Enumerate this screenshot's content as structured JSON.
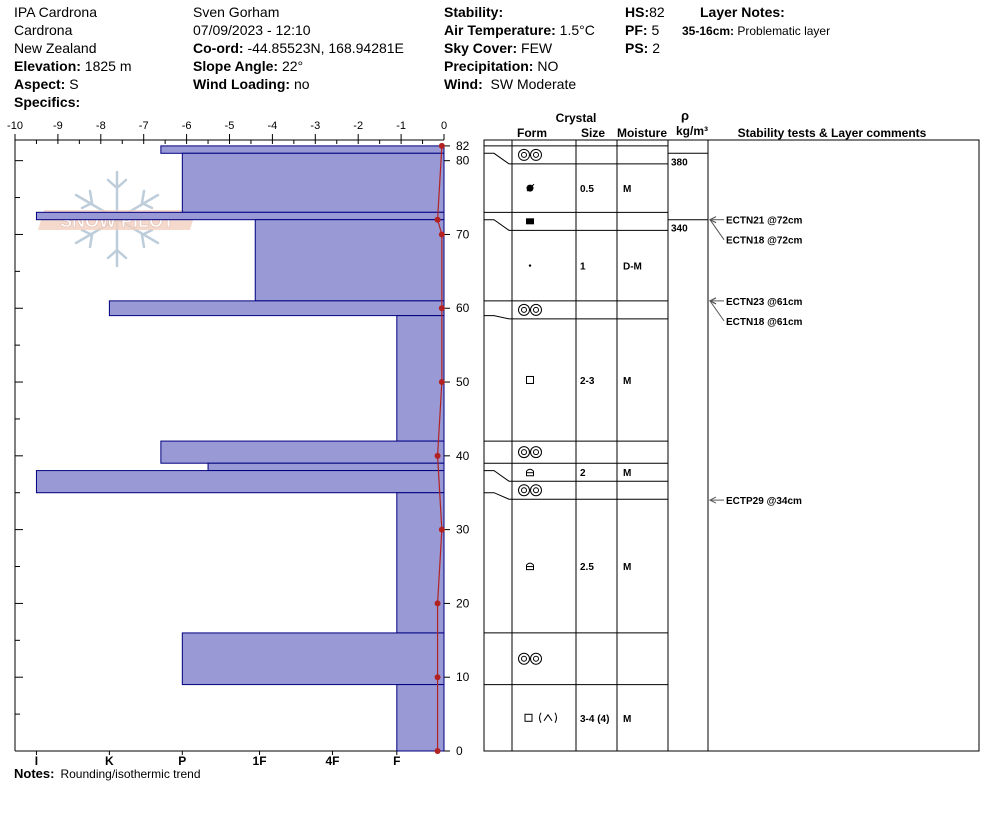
{
  "header": {
    "location": "IPA Cardrona",
    "area": "Cardrona",
    "country": "New Zealand",
    "elevation_label": "Elevation:",
    "elevation_value": "1825 m",
    "aspect_label": "Aspect:",
    "aspect_value": "S",
    "specifics_label": "Specifics:",
    "observer": "Sven Gorham",
    "datetime": "07/09/2023 - 12:10",
    "coord_label": "Co-ord:",
    "coord_value": "-44.85523N, 168.94281E",
    "slope_label": "Slope Angle:",
    "slope_value": "22°",
    "wind_loading_label": "Wind Loading:",
    "wind_loading_value": "no",
    "stability_label": "Stability:",
    "air_temp_label": "Air Temperature:",
    "air_temp_value": "1.5°C",
    "sky_label": "Sky Cover:",
    "sky_value": "FEW",
    "precip_label": "Precipitation:",
    "precip_value": "NO",
    "wind_label": "Wind:",
    "wind_value": "SW Moderate",
    "hs_label": "HS:",
    "hs_value": "82",
    "pf_label": "PF:",
    "pf_value": "5",
    "ps_label": "PS:",
    "ps_value": "2",
    "layer_notes_label": "Layer Notes:",
    "layer_note_range": "35-16cm:",
    "layer_note_text": "Problematic layer"
  },
  "columns": {
    "crystal": "Crystal",
    "form": "Form",
    "size": "Size",
    "moisture": "Moisture",
    "rho": "ρ",
    "density_unit": "kg/m³",
    "stability": "Stability tests & Layer comments"
  },
  "notes": {
    "label": "Notes:",
    "text": "Rounding/isothermic trend"
  },
  "watermark": "SNOW PILOT",
  "colors": {
    "bar": "#9999d6",
    "bar_edge": "#000080",
    "temp": "#b22222"
  },
  "chart_data": {
    "type": "bar",
    "temp_axis": {
      "ticks": [
        -10,
        -9,
        -8,
        -7,
        -6,
        -5,
        -4,
        -3,
        -2,
        -1,
        0
      ],
      "range": [
        -10,
        0
      ]
    },
    "height_axis": {
      "ticks": [
        0,
        10,
        20,
        30,
        40,
        50,
        60,
        70,
        80,
        82
      ],
      "range": [
        0,
        82
      ]
    },
    "hardness_axis": {
      "labels": [
        "I",
        "K",
        "P",
        "1F",
        "4F",
        "F"
      ],
      "positions": [
        -9.5,
        -7.8,
        -6.1,
        -4.3,
        -2.6,
        -1.1
      ]
    },
    "hardness_layers": [
      {
        "top": 82,
        "bottom": 81,
        "value": -6.6
      },
      {
        "top": 81,
        "bottom": 73,
        "value": -6.1
      },
      {
        "top": 73,
        "bottom": 72,
        "value": -9.5
      },
      {
        "top": 72,
        "bottom": 61,
        "value": -4.4
      },
      {
        "top": 61,
        "bottom": 59,
        "value": -7.8
      },
      {
        "top": 59,
        "bottom": 42,
        "value": -1.1
      },
      {
        "top": 42,
        "bottom": 39,
        "value": -6.6
      },
      {
        "top": 39,
        "bottom": 38,
        "value": -5.5
      },
      {
        "top": 38,
        "bottom": 35,
        "value": -9.5
      },
      {
        "top": 35,
        "bottom": 16,
        "value": -1.1
      },
      {
        "top": 16,
        "bottom": 9,
        "value": -6.1
      },
      {
        "top": 9,
        "bottom": 0,
        "value": -1.1
      }
    ],
    "temperature_profile": [
      {
        "height": 82,
        "temp": -0.05
      },
      {
        "height": 72,
        "temp": -0.15
      },
      {
        "height": 70,
        "temp": -0.05
      },
      {
        "height": 60,
        "temp": -0.05
      },
      {
        "height": 50,
        "temp": -0.05
      },
      {
        "height": 40,
        "temp": -0.15
      },
      {
        "height": 30,
        "temp": -0.05
      },
      {
        "height": 20,
        "temp": -0.15
      },
      {
        "height": 10,
        "temp": -0.15
      },
      {
        "height": 0,
        "temp": -0.15
      }
    ],
    "layers": [
      {
        "top": 82,
        "bottom": 81,
        "form": "rounding-grains-icon",
        "size": "",
        "moisture": ""
      },
      {
        "top": 81,
        "bottom": 73,
        "form": "decomposing-icon",
        "size": "0.5",
        "moisture": "M"
      },
      {
        "top": 73,
        "bottom": 72,
        "form": "ice-crust-icon",
        "size": "",
        "moisture": ""
      },
      {
        "top": 72,
        "bottom": 61,
        "form": "small-dot-icon",
        "size": "1",
        "moisture": "D-M"
      },
      {
        "top": 61,
        "bottom": 59,
        "form": "rounding-grains-icon",
        "size": "",
        "moisture": ""
      },
      {
        "top": 59,
        "bottom": 42,
        "form": "faceted-square-icon",
        "size": "2-3",
        "moisture": "M"
      },
      {
        "top": 42,
        "bottom": 39,
        "form": "rounding-grains-icon",
        "size": "",
        "moisture": ""
      },
      {
        "top": 39,
        "bottom": 38,
        "form": "rounded-facet-icon",
        "size": "2",
        "moisture": "M"
      },
      {
        "top": 38,
        "bottom": 35,
        "form": "rounding-grains-icon",
        "size": "",
        "moisture": ""
      },
      {
        "top": 35,
        "bottom": 16,
        "form": "rounded-facet-icon",
        "size": "2.5",
        "moisture": "M"
      },
      {
        "top": 16,
        "bottom": 9,
        "form": "rounding-grains-icon",
        "size": "",
        "moisture": ""
      },
      {
        "top": 9,
        "bottom": 0,
        "form": "facet-depth-hoar-icon",
        "size": "3-4 (4)",
        "moisture": "M"
      }
    ],
    "densities": [
      {
        "top": 81,
        "value": "380"
      },
      {
        "top": 72,
        "value": "340"
      }
    ],
    "stability_tests": [
      {
        "height": 72,
        "labels": [
          "ECTN21 @72cm",
          "ECTN18 @72cm"
        ]
      },
      {
        "height": 61,
        "labels": [
          "ECTN23 @61cm",
          "ECTN18 @61cm"
        ]
      },
      {
        "height": 34,
        "labels": [
          "ECTP29 @34cm"
        ]
      }
    ]
  }
}
